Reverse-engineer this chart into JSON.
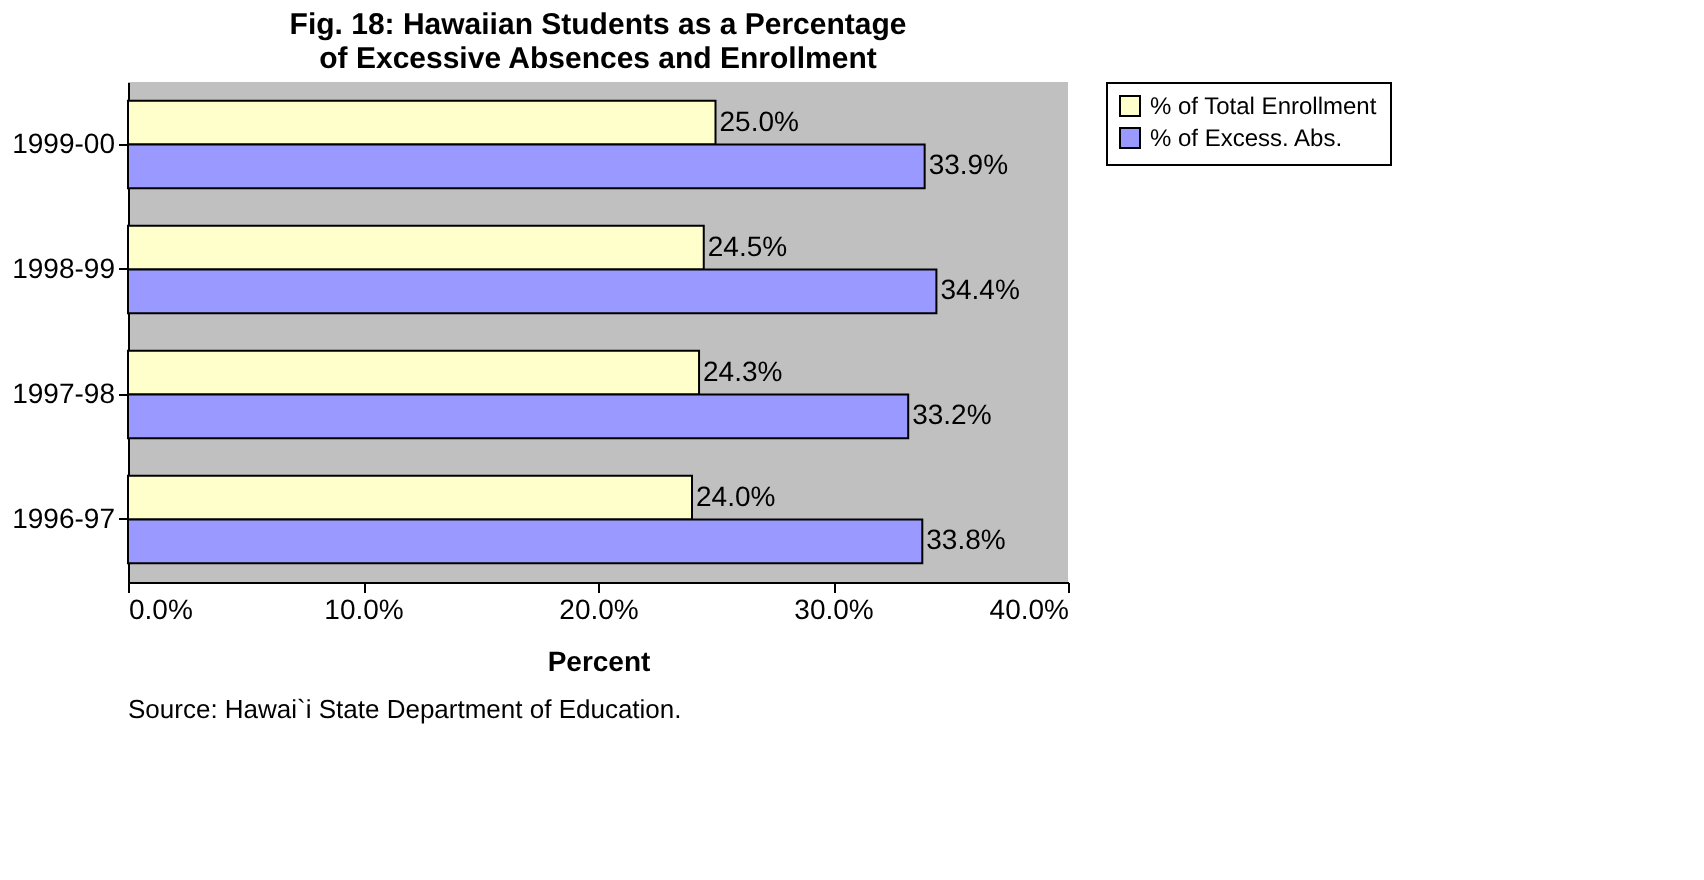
{
  "chart_data": {
    "type": "bar",
    "orientation": "horizontal",
    "title": "Fig. 18: Hawaiian Students as a Percentage of Excessive Absences and Enrollment",
    "xlabel": "Percent",
    "categories": [
      "1999-00",
      "1998-99",
      "1997-98",
      "1996-97"
    ],
    "series": [
      {
        "name": "% of Total Enrollment",
        "color": "#ffffcc",
        "values": [
          25.0,
          24.5,
          24.3,
          24.0
        ],
        "value_labels": [
          "25.0%",
          "24.5%",
          "24.3%",
          "24.0%"
        ]
      },
      {
        "name": "% of Excess. Abs.",
        "color": "#9999ff",
        "values": [
          33.9,
          34.4,
          33.2,
          33.8
        ],
        "value_labels": [
          "33.9%",
          "34.4%",
          "33.2%",
          "33.8%"
        ]
      }
    ],
    "xlim": [
      0,
      40
    ],
    "xticks": [
      {
        "value": 0,
        "label": "0.0%"
      },
      {
        "value": 10,
        "label": "10.0%"
      },
      {
        "value": 20,
        "label": "20.0%"
      },
      {
        "value": 30,
        "label": "30.0%"
      },
      {
        "value": 40,
        "label": "40.0%"
      }
    ],
    "grid": false,
    "legend": "right",
    "annotations": [
      "Source: Hawai`i State Department of Education."
    ]
  }
}
